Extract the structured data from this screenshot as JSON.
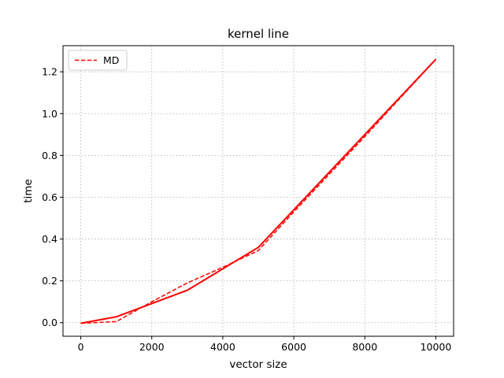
{
  "chart_data": {
    "type": "line",
    "title": "kernel line",
    "xlabel": "vector size",
    "ylabel": "time",
    "xlim": [
      -500,
      10500
    ],
    "ylim": [
      -0.065,
      1.325
    ],
    "xticks": [
      0,
      2000,
      4000,
      6000,
      8000,
      10000
    ],
    "yticks": [
      0.0,
      0.2,
      0.4,
      0.6,
      0.8,
      1.0,
      1.2
    ],
    "xtick_labels": [
      "0",
      "2000",
      "4000",
      "6000",
      "8000",
      "10000"
    ],
    "ytick_labels": [
      "0.0",
      "0.2",
      "0.4",
      "0.6",
      "0.8",
      "1.0",
      "1.2"
    ],
    "grid": true,
    "legend_position": "top-left",
    "series": [
      {
        "name": "MD",
        "style": "dashed",
        "color": "#ff0000",
        "x": [
          0,
          1000,
          2000,
          3000,
          4000,
          5000,
          6000,
          7000,
          8000,
          9000,
          10000
        ],
        "y": [
          -0.003,
          0.005,
          0.1,
          0.19,
          0.265,
          0.345,
          0.53,
          0.71,
          0.89,
          1.075,
          1.26
        ]
      },
      {
        "name": "",
        "style": "solid",
        "color": "#ff0000",
        "x": [
          0,
          1000,
          3000,
          5000,
          10000
        ],
        "y": [
          -0.003,
          0.028,
          0.155,
          0.36,
          1.26
        ]
      }
    ]
  }
}
